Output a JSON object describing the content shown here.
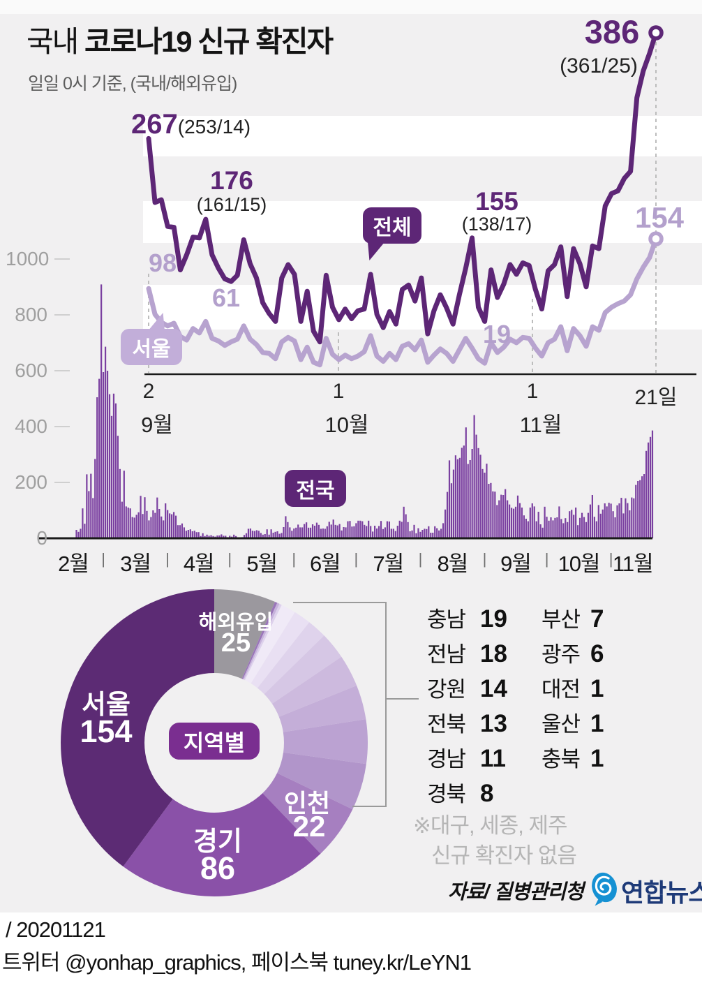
{
  "title": {
    "normal": "국내 ",
    "bold": "코로나19 신규 확진자"
  },
  "subtitle": "일일 0시 기준, (국내/해외유입)",
  "colors": {
    "total_line": "#5d2676",
    "seoul_line": "#b7a3cf",
    "bar": "#7a3fa0",
    "seoul_bubble": "#c2aed9",
    "region_bubble": "#7a2e90",
    "yonhap_blue": "#1691d3",
    "yonhap_navy": "#1e3a78"
  },
  "chart_data": [
    {
      "type": "line",
      "period": "9월 2일 ~ 11월 21일",
      "series": [
        {
          "name": "전체",
          "color": "#5d2676",
          "values": [
            267,
            195,
            198,
            168,
            167,
            119,
            136,
            156,
            155,
            176,
            136,
            121,
            109,
            106,
            113,
            153,
            126,
            110,
            82,
            70,
            61,
            110,
            125,
            114,
            61,
            95,
            50,
            38,
            113,
            77,
            63,
            75,
            64,
            73,
            75,
            114,
            69,
            54,
            72,
            58,
            97,
            102,
            84,
            110,
            47,
            73,
            91,
            76,
            58,
            91,
            121,
            155,
            77,
            61,
            119,
            88,
            103,
            125,
            114,
            127,
            124,
            97,
            75,
            118,
            125,
            145,
            89,
            143,
            126,
            100,
            146,
            143,
            191,
            205,
            208,
            222,
            230,
            313,
            343,
            363,
            386
          ]
        },
        {
          "name": "서울",
          "color": "#b7a3cf",
          "values": [
            98,
            69,
            60,
            56,
            59,
            44,
            40,
            53,
            48,
            61,
            42,
            39,
            34,
            38,
            41,
            56,
            41,
            35,
            26,
            25,
            19,
            38,
            43,
            39,
            18,
            32,
            15,
            12,
            42,
            24,
            18,
            23,
            19,
            22,
            27,
            45,
            22,
            16,
            25,
            18,
            33,
            36,
            29,
            40,
            15,
            23,
            30,
            25,
            16,
            29,
            42,
            31,
            19,
            14,
            37,
            26,
            32,
            41,
            37,
            43,
            42,
            31,
            22,
            37,
            41,
            55,
            28,
            53,
            45,
            33,
            55,
            51,
            71,
            77,
            81,
            84,
            91,
            109,
            122,
            133,
            154
          ]
        }
      ],
      "annotations": [
        {
          "main": "267",
          "sub": "(253/14)"
        },
        {
          "main": "176",
          "sub": "(161/15)"
        },
        {
          "main": "155",
          "sub": "(138/17)"
        },
        {
          "main": "386",
          "sub": "(361/25)"
        },
        {
          "main": "98"
        },
        {
          "main": "61"
        },
        {
          "main": "19"
        },
        {
          "main": "154"
        }
      ],
      "x_ticks": [
        {
          "num": "2",
          "month": "9월"
        },
        {
          "num": "1",
          "month": "10월"
        },
        {
          "num": "1",
          "month": "11월"
        },
        {
          "num": "21일",
          "month": ""
        }
      ]
    },
    {
      "type": "bar",
      "name": "전국",
      "color": "#7a3fa0",
      "ylim": [
        0,
        1000
      ],
      "y_ticks": [
        "1000",
        "800",
        "600",
        "400",
        "200",
        "0"
      ],
      "x_labels": [
        "2월",
        "3월",
        "4월",
        "5월",
        "6월",
        "7월",
        "8월",
        "9월",
        "10월",
        "11월"
      ],
      "month_days": [
        29,
        31,
        30,
        31,
        30,
        31,
        31,
        30,
        31,
        21
      ],
      "values": [
        2,
        1,
        0,
        1,
        2,
        1,
        0,
        1,
        3,
        1,
        0,
        0,
        1,
        0,
        0,
        1,
        30,
        23,
        34,
        107,
        52,
        229,
        169,
        231,
        144,
        284,
        505,
        571,
        909,
        595,
        686,
        600,
        516,
        438,
        518,
        483,
        367,
        248,
        131,
        242,
        114,
        110,
        107,
        76,
        74,
        84,
        93,
        152,
        87,
        147,
        98,
        64,
        76,
        100,
        91,
        146,
        105,
        78,
        64,
        125,
        101,
        89,
        86,
        94,
        81,
        47,
        47,
        53,
        39,
        27,
        30,
        32,
        25,
        27,
        22,
        22,
        8,
        18,
        8,
        13,
        9,
        11,
        8,
        6,
        10,
        10,
        14,
        9,
        9,
        4,
        9,
        6,
        13,
        8,
        3,
        2,
        4,
        12,
        18,
        34,
        35,
        27,
        26,
        29,
        27,
        19,
        13,
        15,
        32,
        13,
        32,
        20,
        23,
        25,
        16,
        19,
        40,
        79,
        58,
        39,
        27,
        35,
        38,
        49,
        39,
        39,
        51,
        57,
        38,
        38,
        50,
        45,
        56,
        48,
        34,
        35,
        34,
        43,
        59,
        49,
        67,
        48,
        46,
        51,
        28,
        40,
        39,
        61,
        62,
        42,
        43,
        54,
        63,
        63,
        61,
        48,
        44,
        63,
        44,
        24,
        45,
        35,
        44,
        62,
        33,
        39,
        61,
        60,
        34,
        34,
        26,
        45,
        63,
        59,
        113,
        86,
        58,
        25,
        28,
        48,
        18,
        36,
        23,
        30,
        34,
        33,
        43,
        20,
        20,
        43,
        36,
        28,
        34,
        54,
        103,
        166,
        279,
        197,
        246,
        297,
        283,
        288,
        324,
        332,
        397,
        266,
        280,
        320,
        441,
        371,
        323,
        299,
        248,
        235,
        267,
        195,
        198,
        168,
        167,
        119,
        136,
        156,
        155,
        176,
        136,
        121,
        109,
        106,
        113,
        153,
        126,
        110,
        82,
        70,
        61,
        110,
        125,
        114,
        61,
        95,
        50,
        38,
        113,
        77,
        63,
        75,
        64,
        73,
        75,
        114,
        69,
        54,
        72,
        58,
        97,
        102,
        84,
        110,
        47,
        73,
        91,
        76,
        58,
        91,
        121,
        155,
        77,
        61,
        119,
        88,
        103,
        125,
        114,
        127,
        124,
        97,
        75,
        118,
        125,
        145,
        89,
        143,
        126,
        100,
        146,
        143,
        191,
        205,
        208,
        222,
        230,
        313,
        343,
        363,
        386
      ]
    },
    {
      "type": "donut",
      "center_label": "지역별",
      "total": 386,
      "slices": [
        {
          "label": "해외유입",
          "value": 25,
          "color": "#9b989e"
        },
        {
          "label": "충북",
          "value": 1,
          "color": "#9a76b9"
        },
        {
          "label": "울산",
          "value": 1,
          "color": "#c7b3dc"
        },
        {
          "label": "대전",
          "value": 1,
          "color": "#ddd1ec"
        },
        {
          "label": "광주",
          "value": 6,
          "color": "#f0eaf7"
        },
        {
          "label": "부산",
          "value": 7,
          "color": "#e9e0f3"
        },
        {
          "label": "경북",
          "value": 8,
          "color": "#dfd3ec"
        },
        {
          "label": "경남",
          "value": 11,
          "color": "#d6c7e5"
        },
        {
          "label": "전북",
          "value": 13,
          "color": "#cdbade"
        },
        {
          "label": "강원",
          "value": 14,
          "color": "#c4aed8"
        },
        {
          "label": "전남",
          "value": 18,
          "color": "#bba2d2"
        },
        {
          "label": "충남",
          "value": 19,
          "color": "#b195ca"
        },
        {
          "label": "인천",
          "value": 22,
          "color": "#a67fc0"
        },
        {
          "label": "경기",
          "value": 86,
          "color": "#8a51a8"
        },
        {
          "label": "서울",
          "value": 154,
          "color": "#5c2b74"
        }
      ]
    }
  ],
  "region_list": {
    "columns": [
      [
        {
          "name": "충남",
          "value": "19"
        },
        {
          "name": "전남",
          "value": "18"
        },
        {
          "name": "강원",
          "value": "14"
        },
        {
          "name": "전북",
          "value": "13"
        },
        {
          "name": "경남",
          "value": "11"
        },
        {
          "name": "경북",
          "value": "8"
        }
      ],
      [
        {
          "name": "부산",
          "value": "7"
        },
        {
          "name": "광주",
          "value": "6"
        },
        {
          "name": "대전",
          "value": "1"
        },
        {
          "name": "울산",
          "value": "1"
        },
        {
          "name": "충북",
          "value": "1"
        }
      ]
    ]
  },
  "note_lines": [
    "※대구, 세종, 제주",
    "신규 확진자 없음"
  ],
  "source_label": "자료/ 질병관리청",
  "logo_text": "연합뉴스",
  "footer_lines": [
    "/ 20201121",
    "트위터 @yonhap_graphics, 페이스북 tuney.kr/LeYN1"
  ]
}
